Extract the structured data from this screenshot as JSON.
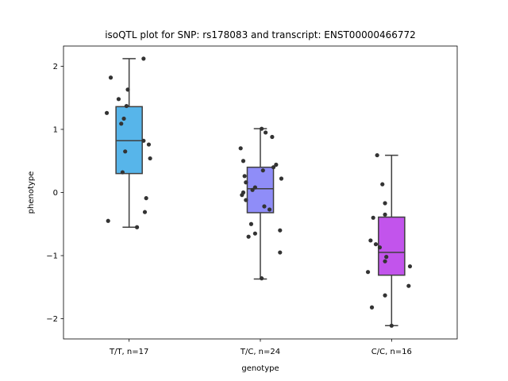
{
  "chart_data": {
    "type": "box",
    "title": "isoQTL plot for SNP: rs178083 and transcript: ENST00000466772",
    "xlabel": "genotype",
    "ylabel": "phenotype",
    "ylim": [
      -2.32,
      2.32
    ],
    "yticks": [
      -2,
      -1,
      0,
      1,
      2
    ],
    "yticks_labels": [
      "−2",
      "−1",
      "0",
      "1",
      "2"
    ],
    "grid": false,
    "categories": [
      "T/T, n=17",
      "T/C, n=24",
      "C/C, n=16"
    ],
    "colors": [
      "#57b5ea",
      "#8f8df8",
      "#c254ec"
    ],
    "boxes": [
      {
        "category": "T/T, n=17",
        "whisker_low": -0.55,
        "q1": 0.3,
        "median": 0.82,
        "q3": 1.36,
        "whisker_high": 2.12
      },
      {
        "category": "T/C, n=24",
        "whisker_low": -1.37,
        "q1": -0.32,
        "median": 0.06,
        "q3": 0.4,
        "whisker_high": 1.01
      },
      {
        "category": "C/C, n=16",
        "whisker_low": -2.11,
        "q1": -1.31,
        "median": -0.95,
        "q3": -0.39,
        "whisker_high": 0.59
      }
    ],
    "points": [
      [
        {
          "jitter": 0.11,
          "y": 2.12
        },
        {
          "jitter": -0.14,
          "y": 1.82
        },
        {
          "jitter": -0.01,
          "y": 1.63
        },
        {
          "jitter": -0.08,
          "y": 1.48
        },
        {
          "jitter": -0.02,
          "y": 1.37
        },
        {
          "jitter": -0.17,
          "y": 1.26
        },
        {
          "jitter": -0.04,
          "y": 1.17
        },
        {
          "jitter": -0.06,
          "y": 1.09
        },
        {
          "jitter": 0.11,
          "y": 0.82
        },
        {
          "jitter": 0.15,
          "y": 0.76
        },
        {
          "jitter": -0.03,
          "y": 0.65
        },
        {
          "jitter": 0.16,
          "y": 0.54
        },
        {
          "jitter": -0.05,
          "y": 0.32
        },
        {
          "jitter": 0.13,
          "y": -0.09
        },
        {
          "jitter": 0.12,
          "y": -0.31
        },
        {
          "jitter": -0.16,
          "y": -0.45
        },
        {
          "jitter": 0.06,
          "y": -0.55
        }
      ],
      [
        {
          "jitter": 0.01,
          "y": 1.01
        },
        {
          "jitter": 0.04,
          "y": 0.95
        },
        {
          "jitter": 0.09,
          "y": 0.88
        },
        {
          "jitter": -0.15,
          "y": 0.7
        },
        {
          "jitter": -0.13,
          "y": 0.5
        },
        {
          "jitter": 0.12,
          "y": 0.44
        },
        {
          "jitter": 0.1,
          "y": 0.4
        },
        {
          "jitter": 0.02,
          "y": 0.35
        },
        {
          "jitter": -0.12,
          "y": 0.26
        },
        {
          "jitter": 0.16,
          "y": 0.22
        },
        {
          "jitter": -0.11,
          "y": 0.16
        },
        {
          "jitter": -0.04,
          "y": 0.08
        },
        {
          "jitter": -0.06,
          "y": 0.04
        },
        {
          "jitter": -0.13,
          "y": 0.0
        },
        {
          "jitter": -0.14,
          "y": -0.04
        },
        {
          "jitter": -0.11,
          "y": -0.12
        },
        {
          "jitter": 0.03,
          "y": -0.22
        },
        {
          "jitter": 0.07,
          "y": -0.27
        },
        {
          "jitter": -0.07,
          "y": -0.5
        },
        {
          "jitter": 0.15,
          "y": -0.6
        },
        {
          "jitter": -0.04,
          "y": -0.65
        },
        {
          "jitter": -0.09,
          "y": -0.7
        },
        {
          "jitter": 0.15,
          "y": -0.95
        },
        {
          "jitter": 0.01,
          "y": -1.36
        }
      ],
      [
        {
          "jitter": -0.11,
          "y": 0.59
        },
        {
          "jitter": -0.07,
          "y": 0.13
        },
        {
          "jitter": -0.05,
          "y": -0.17
        },
        {
          "jitter": -0.05,
          "y": -0.35
        },
        {
          "jitter": -0.14,
          "y": -0.4
        },
        {
          "jitter": -0.16,
          "y": -0.76
        },
        {
          "jitter": -0.12,
          "y": -0.82
        },
        {
          "jitter": -0.09,
          "y": -0.87
        },
        {
          "jitter": -0.04,
          "y": -1.02
        },
        {
          "jitter": -0.05,
          "y": -1.09
        },
        {
          "jitter": 0.14,
          "y": -1.17
        },
        {
          "jitter": -0.18,
          "y": -1.26
        },
        {
          "jitter": 0.13,
          "y": -1.48
        },
        {
          "jitter": -0.05,
          "y": -1.63
        },
        {
          "jitter": -0.15,
          "y": -1.82
        },
        {
          "jitter": 0.0,
          "y": -2.11
        }
      ]
    ]
  }
}
